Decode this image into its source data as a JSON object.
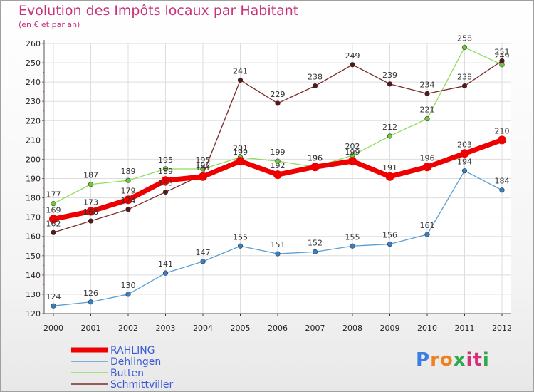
{
  "title": "Evolution des Impôts locaux par Habitant",
  "subtitle": "(en € et par an)",
  "logo": {
    "text": "Proxiti",
    "letters": [
      "P",
      "r",
      "o",
      "x",
      "i",
      "t",
      "i"
    ],
    "colors": [
      "#3b7de0",
      "#f07f1e",
      "#f07f1e",
      "#2fa84f",
      "#d4317a",
      "#d4317a",
      "#2fa84f"
    ]
  },
  "chart_data": {
    "type": "line",
    "title": "Evolution des Impôts locaux par Habitant",
    "ylabel": "(en € et par an)",
    "xlabel": "",
    "ylim": [
      120,
      260
    ],
    "yticks": [
      "120",
      "130",
      "140",
      "150",
      "160",
      "170",
      "180",
      "190",
      "200",
      "210",
      "220",
      "230",
      "240",
      "250",
      "260"
    ],
    "categories": [
      "2000",
      "2001",
      "2002",
      "2003",
      "2004",
      "2005",
      "2006",
      "2007",
      "2008",
      "2009",
      "2010",
      "2011",
      "2012"
    ],
    "grid": true,
    "series": [
      {
        "name": "Dehlingen",
        "color": "#5a9fd4",
        "marker": "#3a7fc4",
        "values": [
          124,
          126,
          130,
          141,
          147,
          155,
          151,
          152,
          155,
          156,
          161,
          194,
          184
        ],
        "labels": [
          "124",
          "126",
          "130",
          "141",
          "147",
          "155",
          "151",
          "152",
          "155",
          "156",
          "161",
          "194",
          "184"
        ]
      },
      {
        "name": "Butten",
        "color": "#8fdc5a",
        "marker": "#6cc93a",
        "values": [
          177,
          187,
          189,
          195,
          195,
          201,
          199,
          196,
          202,
          212,
          221,
          258,
          249
        ],
        "labels": [
          "177",
          "187",
          "189",
          "195",
          "195",
          "201",
          "199",
          "196",
          "202",
          "212",
          "221",
          "258",
          "249"
        ]
      },
      {
        "name": "Schmittviller",
        "color": "#7a2a2a",
        "marker": "#5a1515",
        "values": [
          162,
          168,
          174,
          183,
          192,
          241,
          229,
          238,
          249,
          239,
          234,
          238,
          251
        ],
        "labels": [
          "162",
          "168",
          "174",
          "183",
          "192",
          "241",
          "229",
          "238",
          "249",
          "239",
          "234",
          "238",
          "251"
        ]
      },
      {
        "name": "RAHLING",
        "color": "#ee0000",
        "marker": "#ee0000",
        "values": [
          169,
          173,
          179,
          189,
          191,
          199,
          192,
          196,
          199,
          191,
          196,
          203,
          210
        ],
        "labels": [
          "169",
          "173",
          "179",
          "189",
          "191",
          "199",
          "192",
          "196",
          "199",
          "191",
          "196",
          "203",
          "210"
        ]
      }
    ],
    "legend": [
      "RAHLING",
      "Dehlingen",
      "Butten",
      "Schmittviller"
    ],
    "legend_position": "bottom-left"
  }
}
